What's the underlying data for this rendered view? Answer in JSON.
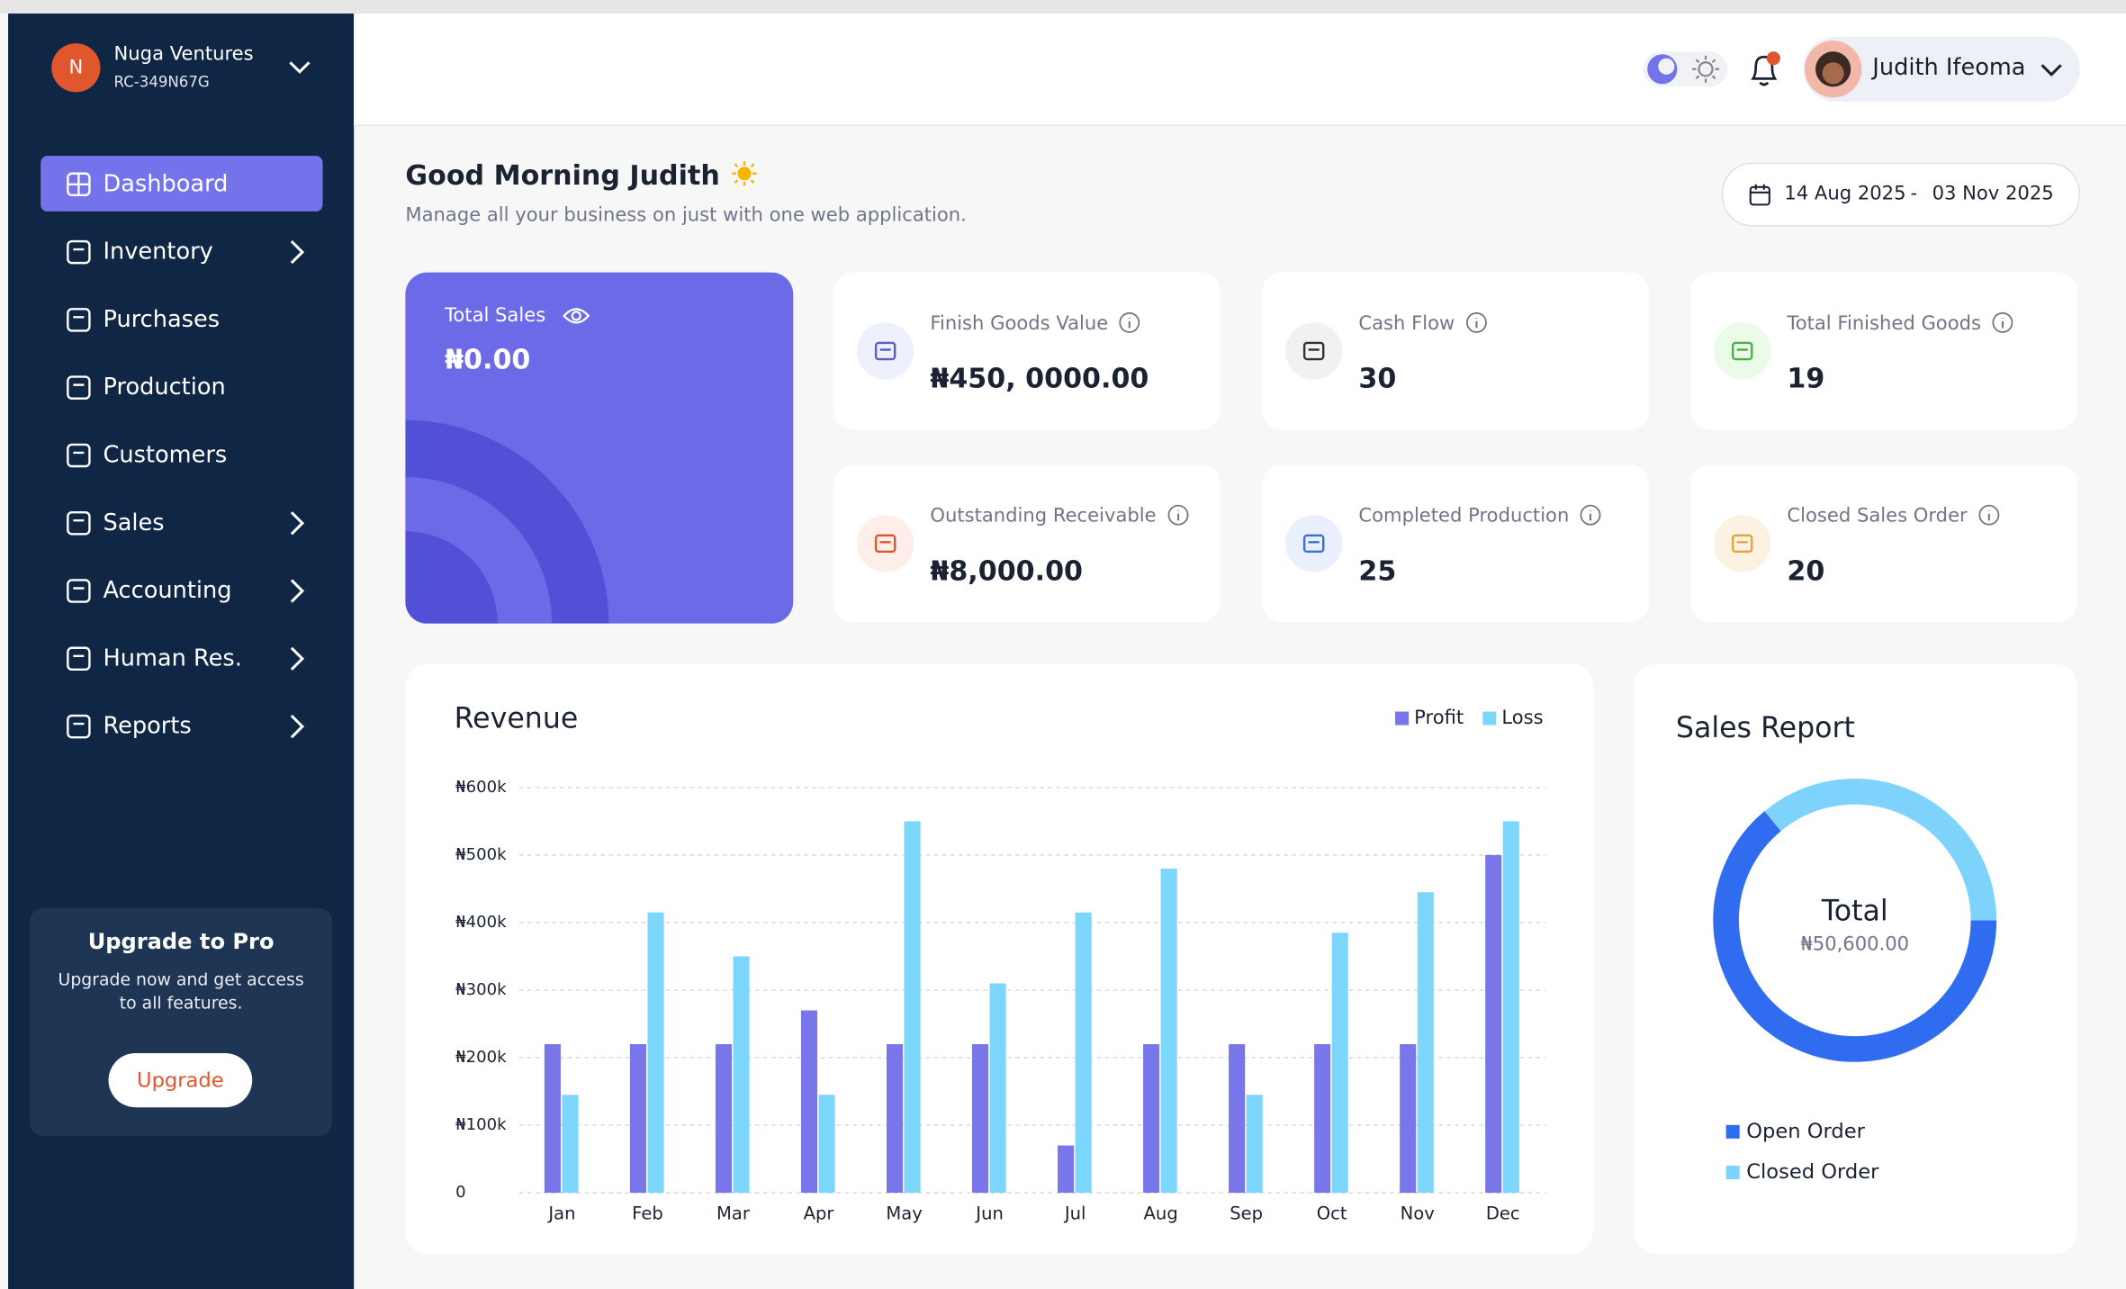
{
  "org": {
    "initial": "N",
    "name": "Nuga Ventures",
    "id": "RC-349N67G"
  },
  "nav": [
    "Dashboard",
    "Inventory",
    "Purchases",
    "Production",
    "Customers",
    "Sales",
    "Accounting",
    "Human Res.",
    "Reports"
  ],
  "upgrade": {
    "title": "Upgrade to Pro",
    "text": "Upgrade now and get access to all features.",
    "button": "Upgrade"
  },
  "user": {
    "name": "Judith Ifeoma"
  },
  "greeting": {
    "title": "Good Morning Judith",
    "subtitle": "Manage all your business on just with one web application."
  },
  "date_range": {
    "start": "14 Aug 2025",
    "separator": "-",
    "end": "03 Nov 2025"
  },
  "total_sales": {
    "label": "Total Sales",
    "value": "₦0.00"
  },
  "cards": [
    {
      "label": "Finish Goods Value",
      "value": "₦450, 0000.00"
    },
    {
      "label": "Cash Flow",
      "value": "30"
    },
    {
      "label": "Total Finished Goods",
      "value": "19"
    },
    {
      "label": "Outstanding Receivable",
      "value": "₦8,000.00"
    },
    {
      "label": "Completed Production",
      "value": "25"
    },
    {
      "label": "Closed Sales Order",
      "value": "20"
    }
  ],
  "chart_data": [
    {
      "type": "bar",
      "title": "Revenue",
      "categories": [
        "Jan",
        "Feb",
        "Mar",
        "Apr",
        "May",
        "Jun",
        "Jul",
        "Aug",
        "Sep",
        "Oct",
        "Nov",
        "Dec"
      ],
      "series": [
        {
          "name": "Profit",
          "color": "#7976ea",
          "values": [
            220000,
            220000,
            220000,
            270000,
            220000,
            220000,
            70000,
            220000,
            220000,
            220000,
            220000,
            500000
          ]
        },
        {
          "name": "Loss",
          "color": "#7dd6fb",
          "values": [
            145000,
            415000,
            350000,
            145000,
            550000,
            310000,
            415000,
            480000,
            145000,
            385000,
            445000,
            550000
          ]
        }
      ],
      "ylim": [
        0,
        600000
      ],
      "yticks": [
        0,
        {
          "value": 100000,
          "label": "₦100k"
        },
        {
          "value": 200000,
          "label": "₦200k"
        },
        {
          "value": 300000,
          "label": "₦300k"
        },
        {
          "value": 400000,
          "label": "₦400k"
        },
        {
          "value": 500000,
          "label": "₦500k"
        },
        {
          "value": 600000,
          "label": "₦600k"
        }
      ],
      "grid": true,
      "legend": "top-right"
    },
    {
      "type": "donut",
      "title": "Sales Report",
      "center_label": "Total",
      "center_value": "₦50,600.00",
      "categories": [
        "Open Order",
        "Closed Order"
      ],
      "values": [
        64,
        36
      ],
      "colors": [
        "#2f6cf0",
        "#7dd3fc"
      ],
      "start_angle": 90,
      "legend": "bottom-left"
    }
  ]
}
